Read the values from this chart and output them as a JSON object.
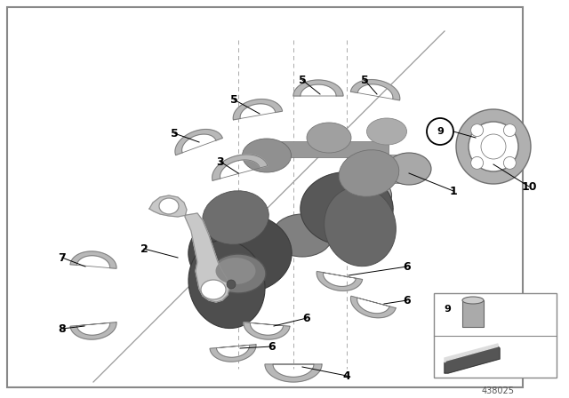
{
  "bg_color": "#ffffff",
  "border_color": "#888888",
  "part_number": "438025",
  "crank_dark": "#5a5a5a",
  "crank_mid": "#808080",
  "crank_light": "#a8a8a8",
  "bearing_color": "#b8b8b8",
  "bearing_edge": "#787878",
  "rod_color": "#c8c8c8",
  "rod_edge": "#909090"
}
